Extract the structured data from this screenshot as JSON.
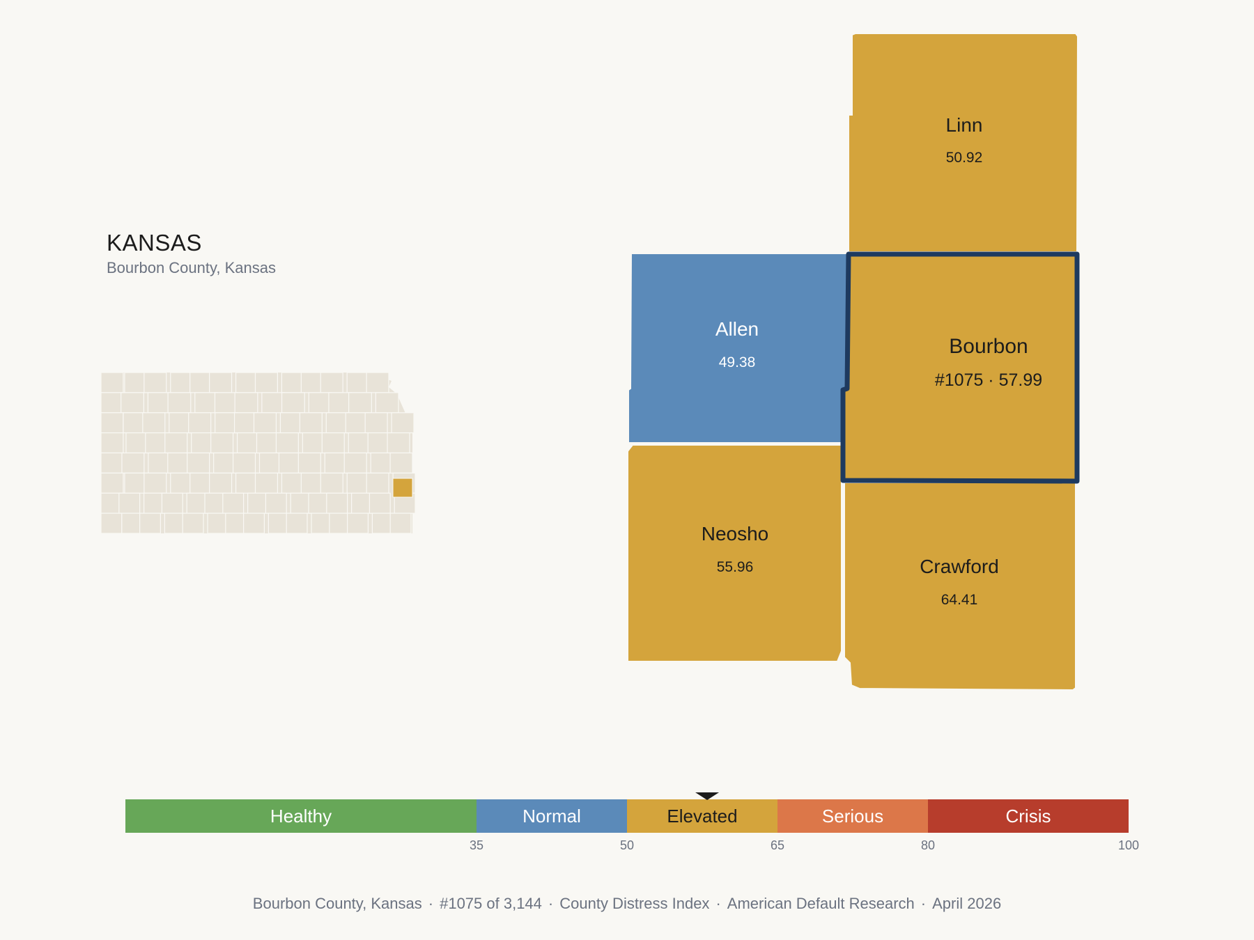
{
  "header": {
    "state": "KANSAS",
    "subtitle": "Bourbon County, Kansas"
  },
  "counties": [
    {
      "key": "linn",
      "name": "Linn",
      "value": "50.92",
      "color": "#d4a43c",
      "text_color": "#1c1c1c"
    },
    {
      "key": "allen",
      "name": "Allen",
      "value": "49.38",
      "color": "#5b8ab9",
      "text_color": "#ffffff"
    },
    {
      "key": "bourbon",
      "name": "Bourbon",
      "value": "#1075 · 57.99",
      "color": "#d4a43c",
      "text_color": "#1c1c1c",
      "highlighted": true,
      "outline": "#1e3a5f"
    },
    {
      "key": "neosho",
      "name": "Neosho",
      "value": "55.96",
      "color": "#d4a43c",
      "text_color": "#1c1c1c"
    },
    {
      "key": "crawford",
      "name": "Crawford",
      "value": "64.41",
      "color": "#d4a43c",
      "text_color": "#1c1c1c"
    }
  ],
  "locator": {
    "fill": "#e8e3d8",
    "stroke": "#f9f8f4",
    "highlight": "#d4a43c"
  },
  "scale": {
    "min": 0,
    "max": 100,
    "marker_value": 57.99,
    "bands": [
      {
        "label": "Healthy",
        "from": 0,
        "to": 35,
        "color": "#67a758",
        "text_color": "#ffffff"
      },
      {
        "label": "Normal",
        "from": 35,
        "to": 50,
        "color": "#5b8ab9",
        "text_color": "#ffffff"
      },
      {
        "label": "Elevated",
        "from": 50,
        "to": 65,
        "color": "#d4a43c",
        "text_color": "#1c1c1c"
      },
      {
        "label": "Serious",
        "from": 65,
        "to": 80,
        "color": "#dc7749",
        "text_color": "#ffffff"
      },
      {
        "label": "Crisis",
        "from": 80,
        "to": 100,
        "color": "#b73d2c",
        "text_color": "#ffffff"
      }
    ],
    "ticks": [
      "35",
      "50",
      "65",
      "80",
      "100"
    ]
  },
  "footer": {
    "parts": [
      "Bourbon County, Kansas",
      "#1075 of 3,144",
      "County Distress Index",
      "American Default Research",
      "April 2026"
    ]
  }
}
